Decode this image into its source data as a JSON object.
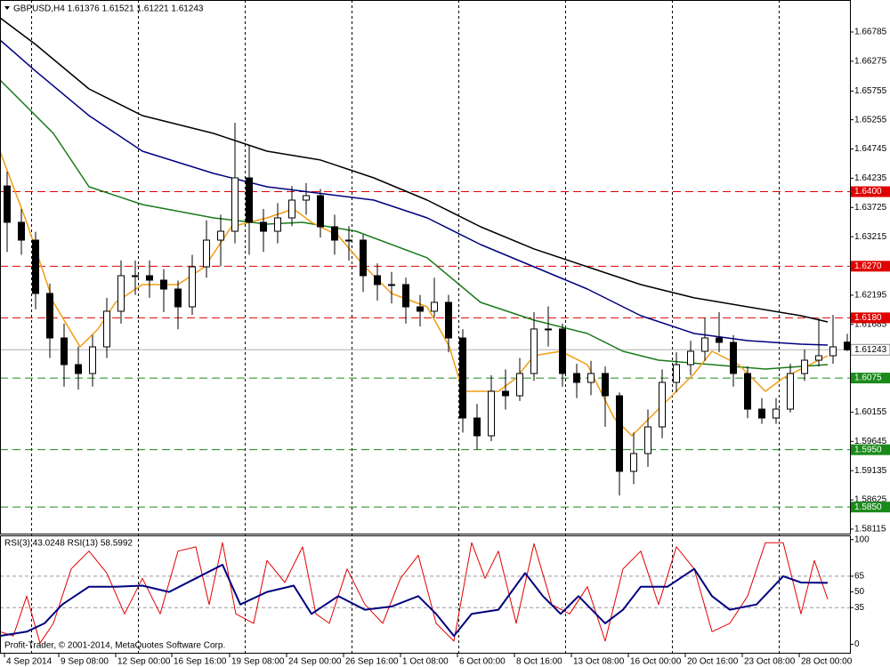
{
  "chart_data": [
    {
      "type": "candlestick",
      "title": "GBPUSD,H4  1.61376 1.61521 1.61221 1.61243",
      "xlim": [
        0,
        238.75
      ],
      "ylim": [
        1.58037,
        1.67343
      ],
      "yticks": [
        1.66785,
        1.66275,
        1.65755,
        1.65255,
        1.64745,
        1.64235,
        1.63725,
        1.63215,
        1.62195,
        1.61685,
        1.60155,
        1.59645,
        1.59135,
        1.58625,
        1.58115
      ],
      "xticks": [
        {
          "value": 1.25,
          "label": "4 Sep 2014"
        },
        {
          "value": 16.5,
          "label": "9 Sep 08:00"
        },
        {
          "value": 32.5,
          "label": "12 Sep 00:00"
        },
        {
          "value": 48.25,
          "label": "16 Sep 16:00"
        },
        {
          "value": 64.5,
          "label": "19 Sep 08:00"
        },
        {
          "value": 80.5,
          "label": "24 Sep 00:00"
        },
        {
          "value": 96.5,
          "label": "26 Sep 16:00"
        },
        {
          "value": 112.5,
          "label": "1 Oct 08:00"
        },
        {
          "value": 128.5,
          "label": "6 Oct 00:00"
        },
        {
          "value": 144.5,
          "label": "8 Oct 16:00"
        },
        {
          "value": 160.5,
          "label": "13 Oct 08:00"
        },
        {
          "value": 176.5,
          "label": "16 Oct 00:00"
        },
        {
          "value": 192.5,
          "label": "20 Oct 16:00"
        },
        {
          "value": 208.5,
          "label": "23 Oct 08:00"
        },
        {
          "value": 224.5,
          "label": "28 Oct 00:00"
        }
      ],
      "x": [
        2,
        6,
        10,
        14,
        18,
        22,
        26,
        30,
        34,
        38,
        42,
        46,
        50,
        54,
        58,
        62,
        66,
        70,
        74,
        78,
        82,
        86,
        90,
        94,
        98,
        102,
        106,
        110,
        114,
        118,
        122,
        126,
        130,
        134,
        138,
        142,
        146,
        150,
        154,
        158,
        162,
        166,
        170,
        174,
        178,
        182,
        186,
        190,
        194,
        198,
        202,
        206,
        210,
        214,
        218,
        222,
        226,
        230,
        234,
        238
      ],
      "candles": [
        [
          1.641,
          1.6435,
          1.6295,
          1.63466
        ],
        [
          1.63466,
          1.637,
          1.629,
          1.63155
        ],
        [
          1.63155,
          1.633,
          1.6195,
          1.62225
        ],
        [
          1.62225,
          1.624,
          1.611,
          1.61449
        ],
        [
          1.61449,
          1.617,
          1.606,
          1.60984
        ],
        [
          1.60984,
          1.613,
          1.6055,
          1.60829
        ],
        [
          1.60829,
          1.615,
          1.606,
          1.61294
        ],
        [
          1.61294,
          1.6215,
          1.611,
          1.61915
        ],
        [
          1.61915,
          1.628,
          1.617,
          1.62535
        ],
        [
          1.62535,
          1.628,
          1.622,
          1.62535
        ],
        [
          1.62535,
          1.628,
          1.6215,
          1.62457
        ],
        [
          1.62457,
          1.6265,
          1.619,
          1.62302
        ],
        [
          1.62302,
          1.6245,
          1.616,
          1.61992
        ],
        [
          1.61992,
          1.629,
          1.6185,
          1.6269
        ],
        [
          1.6269,
          1.635,
          1.625,
          1.63155
        ],
        [
          1.63155,
          1.636,
          1.627,
          1.6331
        ],
        [
          1.6331,
          1.652,
          1.631,
          1.64241
        ],
        [
          1.64241,
          1.648,
          1.629,
          1.63466
        ],
        [
          1.63466,
          1.637,
          1.6295,
          1.6331
        ],
        [
          1.6331,
          1.638,
          1.631,
          1.63543
        ],
        [
          1.63543,
          1.641,
          1.634,
          1.63853
        ],
        [
          1.63853,
          1.6415,
          1.636,
          1.63931
        ],
        [
          1.63931,
          1.6405,
          1.632,
          1.63388
        ],
        [
          1.63388,
          1.636,
          1.629,
          1.63155
        ],
        [
          1.63155,
          1.634,
          1.628,
          1.63155
        ],
        [
          1.63155,
          1.6325,
          1.6225,
          1.62535
        ],
        [
          1.62535,
          1.6275,
          1.621,
          1.6238
        ],
        [
          1.6238,
          1.626,
          1.6205,
          1.6238
        ],
        [
          1.6238,
          1.625,
          1.617,
          1.61992
        ],
        [
          1.61992,
          1.622,
          1.6165,
          1.61915
        ],
        [
          1.61915,
          1.625,
          1.618,
          1.6207
        ],
        [
          1.6207,
          1.622,
          1.612,
          1.61449
        ],
        [
          1.61449,
          1.616,
          1.598,
          1.60053
        ],
        [
          1.60053,
          1.603,
          1.595,
          1.59743
        ],
        [
          1.59743,
          1.608,
          1.5965,
          1.60519
        ],
        [
          1.60519,
          1.609,
          1.602,
          1.60441
        ],
        [
          1.60441,
          1.611,
          1.6035,
          1.60829
        ],
        [
          1.60829,
          1.619,
          1.607,
          1.61605
        ],
        [
          1.61605,
          1.62,
          1.613,
          1.61605
        ],
        [
          1.61605,
          1.617,
          1.606,
          1.60829
        ],
        [
          1.60829,
          1.61,
          1.604,
          1.60674
        ],
        [
          1.60674,
          1.6105,
          1.6045,
          1.60829
        ],
        [
          1.60829,
          1.6095,
          1.599,
          1.60441
        ],
        [
          1.60441,
          1.605,
          1.587,
          1.59123
        ],
        [
          1.59123,
          1.598,
          1.589,
          1.59433
        ],
        [
          1.59433,
          1.602,
          1.592,
          1.59898
        ],
        [
          1.59898,
          1.609,
          1.597,
          1.60674
        ],
        [
          1.60674,
          1.612,
          1.605,
          1.60984
        ],
        [
          1.60984,
          1.614,
          1.608,
          1.61217
        ],
        [
          1.61217,
          1.618,
          1.6105,
          1.61449
        ],
        [
          1.61449,
          1.619,
          1.612,
          1.61372
        ],
        [
          1.61372,
          1.615,
          1.606,
          1.60829
        ],
        [
          1.60829,
          1.6095,
          1.6005,
          1.60208
        ],
        [
          1.60208,
          1.604,
          1.5995,
          1.60053
        ],
        [
          1.60053,
          1.604,
          1.5995,
          1.60208
        ],
        [
          1.60208,
          1.61,
          1.6015,
          1.60829
        ],
        [
          1.60829,
          1.6125,
          1.607,
          1.61061
        ],
        [
          1.61061,
          1.618,
          1.6095,
          1.61139
        ],
        [
          1.61139,
          1.6185,
          1.61,
          1.61294
        ],
        [
          1.61376,
          1.61521,
          1.61221,
          1.61243
        ]
      ],
      "lines": [
        {
          "color": "#000000",
          "x": [
            0,
            10,
            25,
            40,
            60,
            75,
            90,
            105,
            120,
            135,
            150,
            165,
            180,
            195,
            210,
            225,
            232.5
          ],
          "values": [
            1.67033,
            1.66568,
            1.65792,
            1.65327,
            1.65017,
            1.64707,
            1.64552,
            1.64241,
            1.63854,
            1.63388,
            1.63001,
            1.6269,
            1.6238,
            1.62148,
            1.61992,
            1.61837,
            1.61729
          ]
        },
        {
          "color": "#000080",
          "x": [
            0,
            10,
            25,
            40,
            60,
            75,
            85,
            105,
            120,
            135,
            150,
            165,
            180,
            195,
            210,
            225,
            232.5
          ],
          "values": [
            1.66645,
            1.66103,
            1.65327,
            1.64707,
            1.64319,
            1.64086,
            1.64009,
            1.63854,
            1.63543,
            1.63078,
            1.6269,
            1.62303,
            1.61837,
            1.61527,
            1.61403,
            1.61341,
            1.61325
          ]
        },
        {
          "color": "#1a7a1a",
          "x": [
            0,
            15,
            25,
            40,
            60,
            75,
            85,
            100,
            120,
            135,
            150,
            165,
            175,
            185,
            200,
            215,
            225,
            232.5
          ],
          "values": [
            1.65947,
            1.65017,
            1.64086,
            1.63776,
            1.63543,
            1.63435,
            1.63466,
            1.63311,
            1.62846,
            1.6207,
            1.6176,
            1.61527,
            1.61217,
            1.61062,
            1.60984,
            1.60907,
            1.60953,
            1.60984
          ]
        },
        {
          "color": "#f39c12",
          "x": [
            0,
            7.5,
            15,
            22.5,
            27.5,
            32.5,
            40,
            50,
            57.5,
            65,
            75,
            82.5,
            87.5,
            95,
            102.5,
            110,
            120,
            126.25,
            130,
            140,
            145,
            150,
            157.5,
            165,
            172.5,
            177.5,
            185,
            195,
            200,
            207.5,
            215,
            220,
            227.5,
            232.5
          ],
          "values": [
            1.64707,
            1.63466,
            1.6207,
            1.61294,
            1.61605,
            1.6207,
            1.6238,
            1.6238,
            1.6269,
            1.63388,
            1.63543,
            1.63698,
            1.63466,
            1.63233,
            1.6269,
            1.62225,
            1.61992,
            1.61294,
            1.60519,
            1.60519,
            1.60752,
            1.6114,
            1.61217,
            1.60984,
            1.60054,
            1.59743,
            1.60209,
            1.60829,
            1.61217,
            1.60984,
            1.60519,
            1.60752,
            1.60984,
            1.6114
          ]
        }
      ],
      "levels": [
        {
          "value": 1.64,
          "label": "1.6400",
          "color": "#e00000"
        },
        {
          "value": 1.627,
          "label": "1.6270",
          "color": "#e00000"
        },
        {
          "value": 1.618,
          "label": "1.6180",
          "color": "#e00000"
        },
        {
          "value": 1.6075,
          "label": "1.6075",
          "color": "#1a8a1a"
        },
        {
          "value": 1.595,
          "label": "1.5950",
          "color": "#1a8a1a"
        },
        {
          "value": 1.585,
          "label": "1.5850",
          "color": "#1a8a1a"
        }
      ],
      "current_price": 1.61243
    },
    {
      "type": "line",
      "title": "RSI(3) 43.0248  RSI(13) 58.5992",
      "note": "Profit-Trader, © 2001-2014, MetaQuotes Software Corp.",
      "xlim": [
        0,
        238.75
      ],
      "ylim": [
        -9,
        104
      ],
      "yticks": [
        100,
        65,
        50,
        35,
        0
      ],
      "levels": [
        65,
        35
      ],
      "series": [
        {
          "color": "#e00000",
          "x": [
            0,
            3.75,
            7.5,
            11.25,
            15,
            20,
            25,
            30,
            35,
            40,
            45,
            50,
            55,
            58.75,
            62.5,
            66.25,
            71.25,
            75,
            80,
            85,
            88.75,
            92.5,
            97.5,
            102.5,
            107.5,
            112.5,
            117.5,
            122.5,
            127.5,
            132.5,
            136.25,
            140,
            145,
            150,
            155,
            160,
            165,
            170,
            175,
            180,
            185,
            190,
            195,
            200,
            205,
            210,
            215,
            220,
            225,
            228.75,
            232.5
          ],
          "values": [
            12,
            8,
            46,
            1,
            20,
            72,
            89,
            68,
            29,
            63,
            29,
            89,
            93,
            38,
            97,
            29,
            20,
            80,
            59,
            93,
            29,
            20,
            72,
            38,
            20,
            63,
            85,
            20,
            3,
            97,
            63,
            89,
            20,
            96,
            38,
            29,
            55,
            3,
            72,
            89,
            38,
            93,
            72,
            12,
            20,
            46,
            97,
            97,
            29,
            80,
            43.0248
          ]
        },
        {
          "color": "#000080",
          "x": [
            0,
            7.5,
            12.5,
            17.5,
            25,
            32.5,
            40,
            47.5,
            55,
            62.5,
            67.5,
            75,
            82.5,
            87.5,
            95,
            102.5,
            110,
            117.5,
            122.5,
            127.5,
            132.5,
            140,
            147.5,
            152.5,
            157.5,
            162.5,
            170,
            175,
            180,
            187.5,
            195,
            200,
            205,
            212.5,
            220,
            225,
            232.5
          ],
          "values": [
            8,
            12,
            20,
            38,
            55,
            55,
            56,
            50,
            63,
            76,
            38,
            50,
            56,
            29,
            46,
            33,
            36,
            46,
            29,
            8,
            29,
            33,
            68,
            46,
            29,
            46,
            20,
            33,
            55,
            55,
            72,
            46,
            33,
            38,
            65,
            59,
            58.5992
          ]
        }
      ]
    }
  ]
}
